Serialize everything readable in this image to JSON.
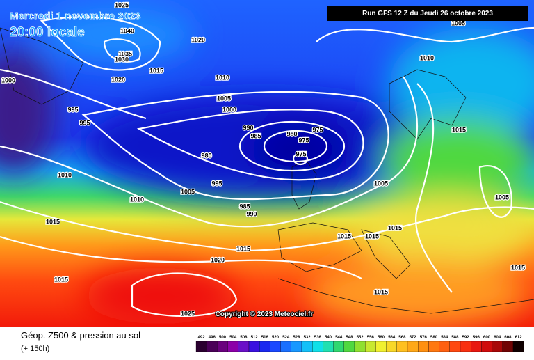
{
  "header": {
    "date": "Mercredi 1 novembre 2023",
    "time": "20:00 locale",
    "run": "Run GFS 12 Z du Jeudi 26 octobre 2023"
  },
  "footer": {
    "copyright": "Copyright © 2023 Meteociel.fr",
    "product": "Géop. Z500 & pression au sol",
    "lead": "(+ 150h)"
  },
  "isobars": [
    1025,
    1040,
    1035,
    1030,
    1020,
    1015,
    1020,
    1010,
    1005,
    1000,
    1000,
    995,
    995,
    990,
    985,
    980,
    975,
    975,
    975,
    980,
    995,
    1010,
    1005,
    1010,
    985,
    990,
    1015,
    1015,
    1020,
    1015,
    1025,
    1005,
    1010,
    1015,
    1005,
    1005,
    1015,
    1015,
    1015,
    1015,
    1015
  ],
  "scale": {
    "labels": [
      492,
      496,
      500,
      504,
      508,
      512,
      516,
      520,
      524,
      528,
      532,
      536,
      540,
      544,
      548,
      552,
      556,
      560,
      564,
      568,
      572,
      576,
      580,
      584,
      588,
      592,
      596,
      600,
      604,
      608,
      612
    ],
    "colors": [
      "#2a0030",
      "#4a0058",
      "#6a007e",
      "#8c00a8",
      "#6a10c8",
      "#3a10e0",
      "#1a28f0",
      "#1a48ff",
      "#1a70ff",
      "#1898ff",
      "#14c0f8",
      "#10e0e8",
      "#20e0b0",
      "#30d870",
      "#50d840",
      "#90e030",
      "#c8e830",
      "#f0f030",
      "#f8d828",
      "#ffc020",
      "#ffa818",
      "#ff9010",
      "#ff7810",
      "#ff6010",
      "#ff4810",
      "#f83010",
      "#e81810",
      "#d00c0c",
      "#a80808",
      "#700404",
      "#100000"
    ]
  }
}
